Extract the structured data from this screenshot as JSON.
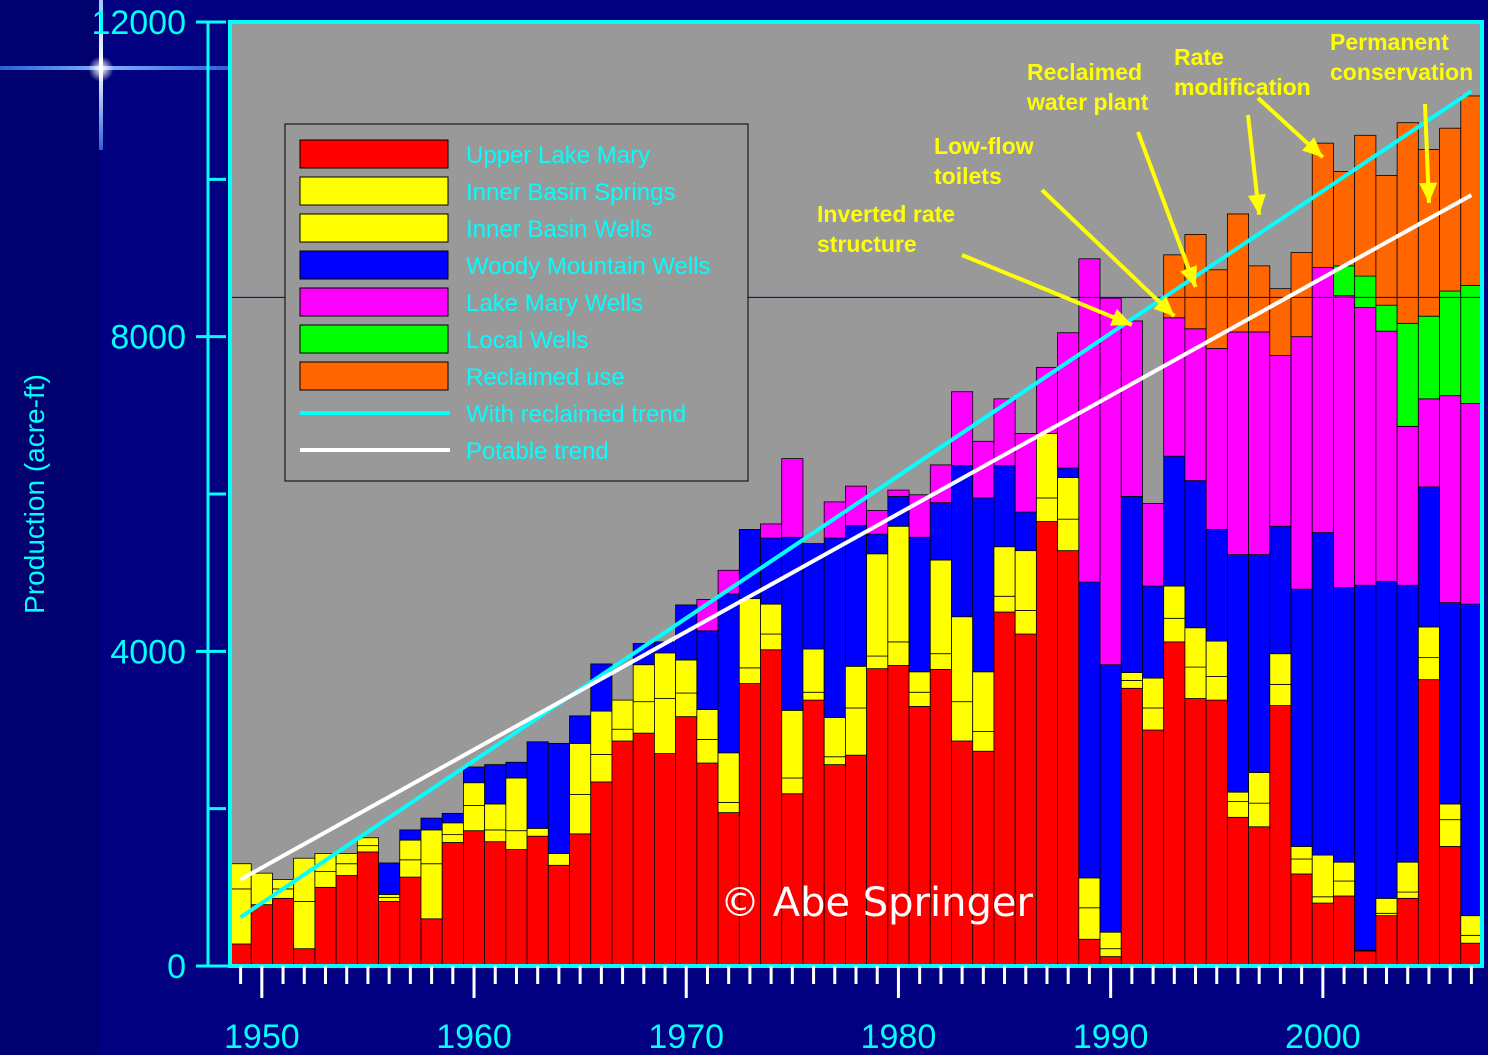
{
  "chart_data": {
    "type": "bar",
    "stacked": true,
    "ylabel": "Production (acre-ft)",
    "xlabel": "",
    "ylim": [
      0,
      12000
    ],
    "xlim": [
      1948.5,
      2007.5
    ],
    "y_ticks": [
      0,
      4000,
      8000,
      12000
    ],
    "y_tick_labels": [
      "0",
      "4000",
      "8000",
      "12000"
    ],
    "x_ticks": [
      1950,
      1960,
      1970,
      1980,
      1990,
      2000
    ],
    "x_tick_labels": [
      "1950",
      "1960",
      "1970",
      "1980",
      "1990",
      "2000"
    ],
    "legend_position": "top-left",
    "plot_background": "#999999",
    "categories": [
      1949,
      1950,
      1951,
      1952,
      1953,
      1954,
      1955,
      1956,
      1957,
      1958,
      1959,
      1960,
      1961,
      1962,
      1963,
      1964,
      1965,
      1966,
      1967,
      1968,
      1969,
      1970,
      1971,
      1972,
      1973,
      1974,
      1975,
      1976,
      1977,
      1978,
      1979,
      1980,
      1981,
      1982,
      1983,
      1984,
      1985,
      1986,
      1987,
      1988,
      1989,
      1990,
      1991,
      1992,
      1993,
      1994,
      1995,
      1996,
      1997,
      1998,
      1999,
      2000,
      2001,
      2002,
      2003,
      2004,
      2005,
      2006,
      2007
    ],
    "series": [
      {
        "name": "Upper Lake Mary",
        "color": "#ff0000",
        "values": [
          280,
          780,
          860,
          220,
          1000,
          1150,
          1450,
          820,
          1130,
          600,
          1570,
          1720,
          1580,
          1480,
          1650,
          1280,
          1680,
          2340,
          2860,
          2960,
          2700,
          3170,
          2580,
          1950,
          3590,
          4020,
          2190,
          3380,
          2560,
          2680,
          3780,
          3820,
          3300,
          3770,
          2860,
          2730,
          4500,
          4220,
          5650,
          5280,
          340,
          120,
          3530,
          3000,
          4120,
          3400,
          3380,
          1890,
          1770,
          3310,
          1170,
          800,
          890,
          190,
          640,
          860,
          3640,
          1520,
          290
        ]
      },
      {
        "name": "Inner Basin Springs",
        "color": "#ffff00",
        "values": [
          700,
          400,
          120,
          600,
          200,
          150,
          80,
          50,
          220,
          700,
          100,
          320,
          150,
          240,
          100,
          150,
          500,
          350,
          150,
          400,
          700,
          300,
          300,
          130,
          200,
          200,
          200,
          100,
          100,
          600,
          160,
          300,
          180,
          200,
          500,
          250,
          200,
          300,
          300,
          400,
          400,
          100,
          100,
          280,
          300,
          400,
          300,
          200,
          300,
          270,
          190,
          80,
          190,
          10,
          30,
          80,
          280,
          340,
          100
        ]
      },
      {
        "name": "Inner Basin Wells",
        "color": "#ffff00",
        "values": [
          320,
          0,
          120,
          550,
          230,
          130,
          100,
          40,
          250,
          430,
          150,
          290,
          330,
          670,
          0,
          0,
          650,
          550,
          370,
          470,
          580,
          420,
          380,
          630,
          880,
          380,
          860,
          550,
          500,
          530,
          1300,
          1470,
          260,
          1190,
          1080,
          760,
          630,
          760,
          820,
          530,
          380,
          210,
          100,
          380,
          410,
          500,
          450,
          120,
          390,
          390,
          160,
          530,
          240,
          0,
          190,
          380,
          390,
          200,
          250
        ]
      },
      {
        "name": "Woody Mountain Wells",
        "color": "#0000ff",
        "values": [
          0,
          0,
          0,
          0,
          0,
          0,
          0,
          400,
          130,
          150,
          120,
          200,
          500,
          200,
          1100,
          1400,
          350,
          600,
          0,
          270,
          140,
          700,
          1000,
          2020,
          880,
          840,
          2200,
          1340,
          2280,
          1790,
          250,
          380,
          1710,
          730,
          1920,
          2210,
          1030,
          490,
          0,
          120,
          3760,
          3400,
          2240,
          1170,
          1650,
          1870,
          1420,
          3020,
          2770,
          1620,
          3270,
          4100,
          3490,
          4640,
          4030,
          3520,
          1780,
          2560,
          3960
        ]
      },
      {
        "name": "Lake Mary Wells",
        "color": "#ff00ff",
        "values": [
          0,
          0,
          0,
          0,
          0,
          0,
          0,
          0,
          0,
          0,
          0,
          0,
          0,
          0,
          0,
          0,
          0,
          0,
          0,
          0,
          0,
          0,
          400,
          300,
          0,
          180,
          1000,
          0,
          460,
          500,
          300,
          80,
          540,
          480,
          940,
          720,
          850,
          1000,
          840,
          1720,
          4110,
          4660,
          2230,
          1050,
          1760,
          1930,
          2300,
          2830,
          2830,
          2170,
          3210,
          3370,
          3710,
          3530,
          3180,
          2020,
          1120,
          2630,
          2550
        ]
      },
      {
        "name": "Local Wells",
        "color": "#00ff00",
        "values": [
          0,
          0,
          0,
          0,
          0,
          0,
          0,
          0,
          0,
          0,
          0,
          0,
          0,
          0,
          0,
          0,
          0,
          0,
          0,
          0,
          0,
          0,
          0,
          0,
          0,
          0,
          0,
          0,
          0,
          0,
          0,
          0,
          0,
          0,
          0,
          0,
          0,
          0,
          0,
          0,
          0,
          0,
          0,
          0,
          0,
          0,
          0,
          0,
          0,
          0,
          0,
          0,
          380,
          400,
          330,
          1310,
          1050,
          1330,
          1500
        ]
      },
      {
        "name": "Reclaimed use",
        "color": "#ff6600",
        "values": [
          0,
          0,
          0,
          0,
          0,
          0,
          0,
          0,
          0,
          0,
          0,
          0,
          0,
          0,
          0,
          0,
          0,
          0,
          0,
          0,
          0,
          0,
          0,
          0,
          0,
          0,
          0,
          0,
          0,
          0,
          0,
          0,
          0,
          0,
          0,
          0,
          0,
          0,
          0,
          0,
          0,
          0,
          0,
          0,
          800,
          1200,
          1000,
          1500,
          840,
          850,
          1070,
          1580,
          1200,
          1790,
          1650,
          2550,
          2120,
          2070,
          2410
        ]
      }
    ],
    "trend_lines": [
      {
        "name": "With reclaimed trend",
        "color": "#00ffff",
        "x": [
          1949,
          2007
        ],
        "y": [
          620,
          11120
        ]
      },
      {
        "name": "Potable trend",
        "color": "#ffffff",
        "x": [
          1949,
          2007
        ],
        "y": [
          1100,
          9800
        ]
      }
    ],
    "reference_line_y": 8500,
    "annotations": [
      {
        "text": [
          "Inverted rate",
          "structure"
        ],
        "arrow_to": [
          1991,
          8150
        ]
      },
      {
        "text": [
          "Low-flow",
          "toilets"
        ],
        "arrow_to": [
          1993,
          8260
        ]
      },
      {
        "text": [
          "Reclaimed",
          "water plant"
        ],
        "arrow_to": [
          1994,
          8630
        ]
      },
      {
        "text": [
          "Rate",
          "modification"
        ],
        "arrow_to": [
          1997,
          9550
        ]
      },
      {
        "text": [
          "Permanent",
          "conservation"
        ],
        "arrow_to": [
          2005,
          9700
        ]
      }
    ],
    "annotation_arrows": [
      {
        "to": [
          2000,
          10280
        ]
      }
    ],
    "watermark": "© Abe Springer"
  }
}
